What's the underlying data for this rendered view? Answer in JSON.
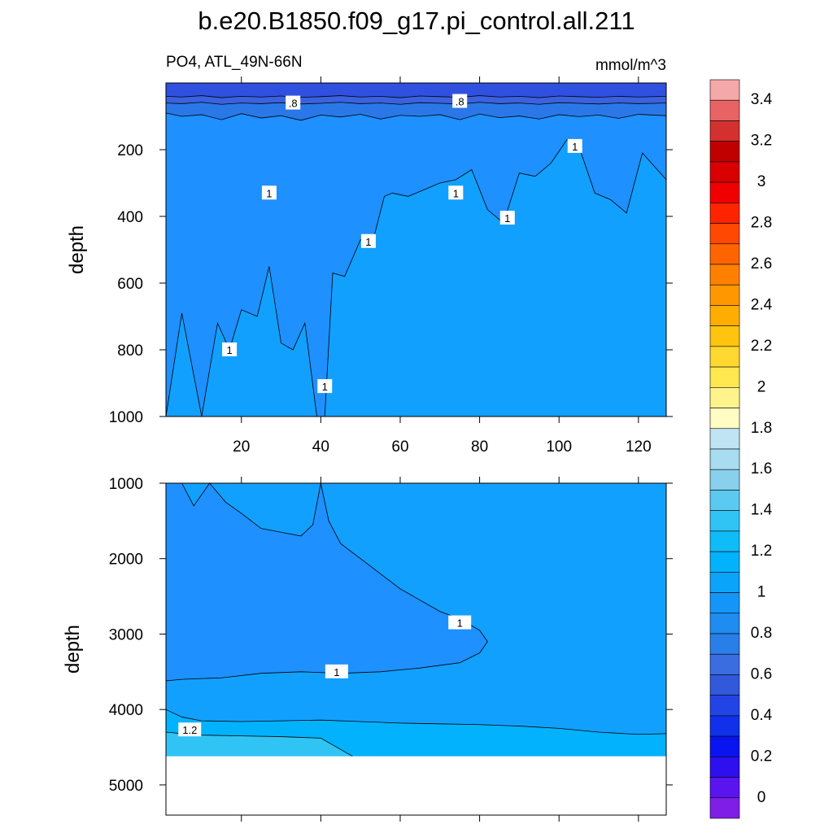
{
  "chart_data": {
    "type": "contour",
    "title": "b.e20.B1850.f09_g17.pi_control.all.211",
    "variable_label": "PO4, ATL_49N-66N",
    "units_label": "mmol/m^3",
    "colorbar": {
      "levels": [
        "0",
        "0.2",
        "0.4",
        "0.6",
        "0.8",
        "1",
        "1.2",
        "1.4",
        "1.6",
        "1.8",
        "2",
        "2.2",
        "2.4",
        "2.6",
        "2.8",
        "3",
        "3.2",
        "3.4"
      ],
      "colors": [
        "#7f1ee6",
        "#5a14f0",
        "#2e10ee",
        "#0a14f0",
        "#1030ea",
        "#2244e4",
        "#3258dc",
        "#3a6ee0",
        "#2a7ee8",
        "#1e8cf0",
        "#1496f8",
        "#0aa4fa",
        "#02b2fc",
        "#10bcf8",
        "#30c4f4",
        "#5ccaf0",
        "#88d0ec",
        "#a8dcf0",
        "#c0e4f4",
        "#fffcc4",
        "#fff48c",
        "#ffe850",
        "#ffd830",
        "#ffc410",
        "#ffae00",
        "#ff9800",
        "#ff8000",
        "#ff6400",
        "#ff4800",
        "#ff2400",
        "#f00000",
        "#d80000",
        "#c00000",
        "#d43030",
        "#e86464",
        "#f4a8a8"
      ]
    },
    "panels": [
      {
        "name": "upper",
        "ylabel": "depth",
        "x_range": [
          1,
          127
        ],
        "y_range": [
          0,
          1000
        ],
        "y_reversed": true,
        "x_ticks": [
          20,
          40,
          60,
          80,
          100,
          120
        ],
        "y_ticks": [
          200,
          400,
          600,
          800,
          1000
        ],
        "x_tick_labels": [
          "20",
          "40",
          "60",
          "80",
          "100",
          "120"
        ],
        "y_tick_labels": [
          "200",
          "400",
          "600",
          "800",
          "1000"
        ],
        "contour_labels": [
          ".8",
          ".8",
          "1",
          "1",
          "1",
          "1",
          "1",
          "1",
          "1"
        ],
        "contours": [
          {
            "level": 0.6,
            "fill_below": "#3a62e0",
            "x": [
              1,
              5,
              10,
              15,
              20,
              25,
              30,
              35,
              40,
              45,
              50,
              55,
              60,
              65,
              70,
              75,
              80,
              85,
              90,
              95,
              100,
              105,
              110,
              115,
              120,
              127
            ],
            "y": [
              40,
              42,
              38,
              44,
              40,
              42,
              39,
              43,
              41,
              38,
              42,
              40,
              44,
              39,
              41,
              43,
              38,
              42,
              40,
              44,
              39,
              41,
              43,
              40,
              42,
              40
            ]
          },
          {
            "level": 0.7,
            "fill_below": "#2a78e8",
            "x": [
              1,
              5,
              10,
              15,
              20,
              25,
              30,
              35,
              40,
              45,
              50,
              55,
              60,
              65,
              70,
              75,
              80,
              85,
              90,
              95,
              100,
              105,
              110,
              115,
              120,
              127
            ],
            "y": [
              60,
              62,
              58,
              64,
              60,
              62,
              59,
              63,
              61,
              58,
              62,
              60,
              64,
              59,
              61,
              63,
              58,
              62,
              60,
              64,
              59,
              61,
              63,
              60,
              62,
              60
            ]
          },
          {
            "level": 0.8,
            "fill_below": "#1e90ff",
            "x": [
              1,
              5,
              10,
              15,
              20,
              25,
              30,
              35,
              40,
              45,
              50,
              55,
              60,
              65,
              70,
              75,
              80,
              85,
              90,
              95,
              100,
              105,
              110,
              115,
              120,
              127
            ],
            "y": [
              90,
              100,
              95,
              110,
              92,
              105,
              98,
              112,
              96,
              102,
              94,
              108,
              97,
              100,
              95,
              110,
              93,
              104,
              99,
              108,
              95,
              101,
              96,
              106,
              94,
              98
            ]
          },
          {
            "level": 1.0,
            "fill_below": "#12a0ff",
            "x": [
              1,
              5,
              10,
              14,
              17,
              20,
              24,
              27,
              30,
              33,
              36,
              39,
              41,
              43,
              46,
              50,
              53,
              56,
              58,
              62,
              66,
              70,
              74,
              78,
              82,
              86,
              90,
              94,
              98,
              102,
              105,
              109,
              113,
              117,
              121,
              127
            ],
            "y": [
              1000,
              690,
              1000,
              720,
              800,
              680,
              700,
              550,
              780,
              800,
              720,
              1000,
              1000,
              570,
              580,
              470,
              480,
              340,
              330,
              340,
              320,
              300,
              290,
              260,
              380,
              420,
              270,
              280,
              240,
              170,
              190,
              330,
              350,
              390,
              210,
              290
            ]
          }
        ]
      },
      {
        "name": "lower",
        "ylabel": "depth",
        "x_range": [
          1,
          127
        ],
        "y_range": [
          1000,
          5400
        ],
        "y_reversed": true,
        "x_ticks": [
          20,
          40,
          60,
          80,
          100,
          120
        ],
        "y_ticks": [
          1000,
          2000,
          3000,
          4000,
          5000
        ],
        "x_tick_labels": [],
        "y_tick_labels": [
          "1000",
          "2000",
          "3000",
          "4000",
          "5000"
        ],
        "contour_labels": [
          "1",
          "1",
          "1.2"
        ],
        "ocean_floor_depth": 4620,
        "contours": [
          {
            "level": 1.0,
            "region": "upper-left plume",
            "x": [
              5,
              8,
              12,
              16,
              20,
              25,
              30,
              35,
              38,
              40,
              42,
              45,
              50,
              55,
              60,
              70,
              75,
              80,
              82,
              80,
              75,
              65,
              55,
              45,
              35,
              25,
              15,
              5,
              1
            ],
            "y": [
              1000,
              1300,
              1000,
              1250,
              1400,
              1600,
              1650,
              1700,
              1550,
              1000,
              1500,
              1800,
              2000,
              2200,
              2400,
              2700,
              2800,
              2950,
              3100,
              3250,
              3380,
              3450,
              3500,
              3520,
              3500,
              3520,
              3580,
              3600,
              3620
            ]
          },
          {
            "level": 1.1,
            "region": "near-bottom",
            "x": [
              1,
              5,
              10,
              20,
              30,
              40,
              50,
              60,
              70,
              80,
              90,
              100,
              110,
              120,
              127
            ],
            "y": [
              4000,
              4100,
              4150,
              4160,
              4150,
              4140,
              4160,
              4180,
              4190,
              4200,
              4220,
              4250,
              4300,
              4330,
              4320
            ]
          },
          {
            "level": 1.2,
            "region": "bottom-left pocket",
            "x": [
              1,
              5,
              10,
              20,
              30,
              40,
              48
            ],
            "y": [
              4300,
              4320,
              4340,
              4350,
              4360,
              4380,
              4620
            ]
          }
        ]
      }
    ]
  }
}
